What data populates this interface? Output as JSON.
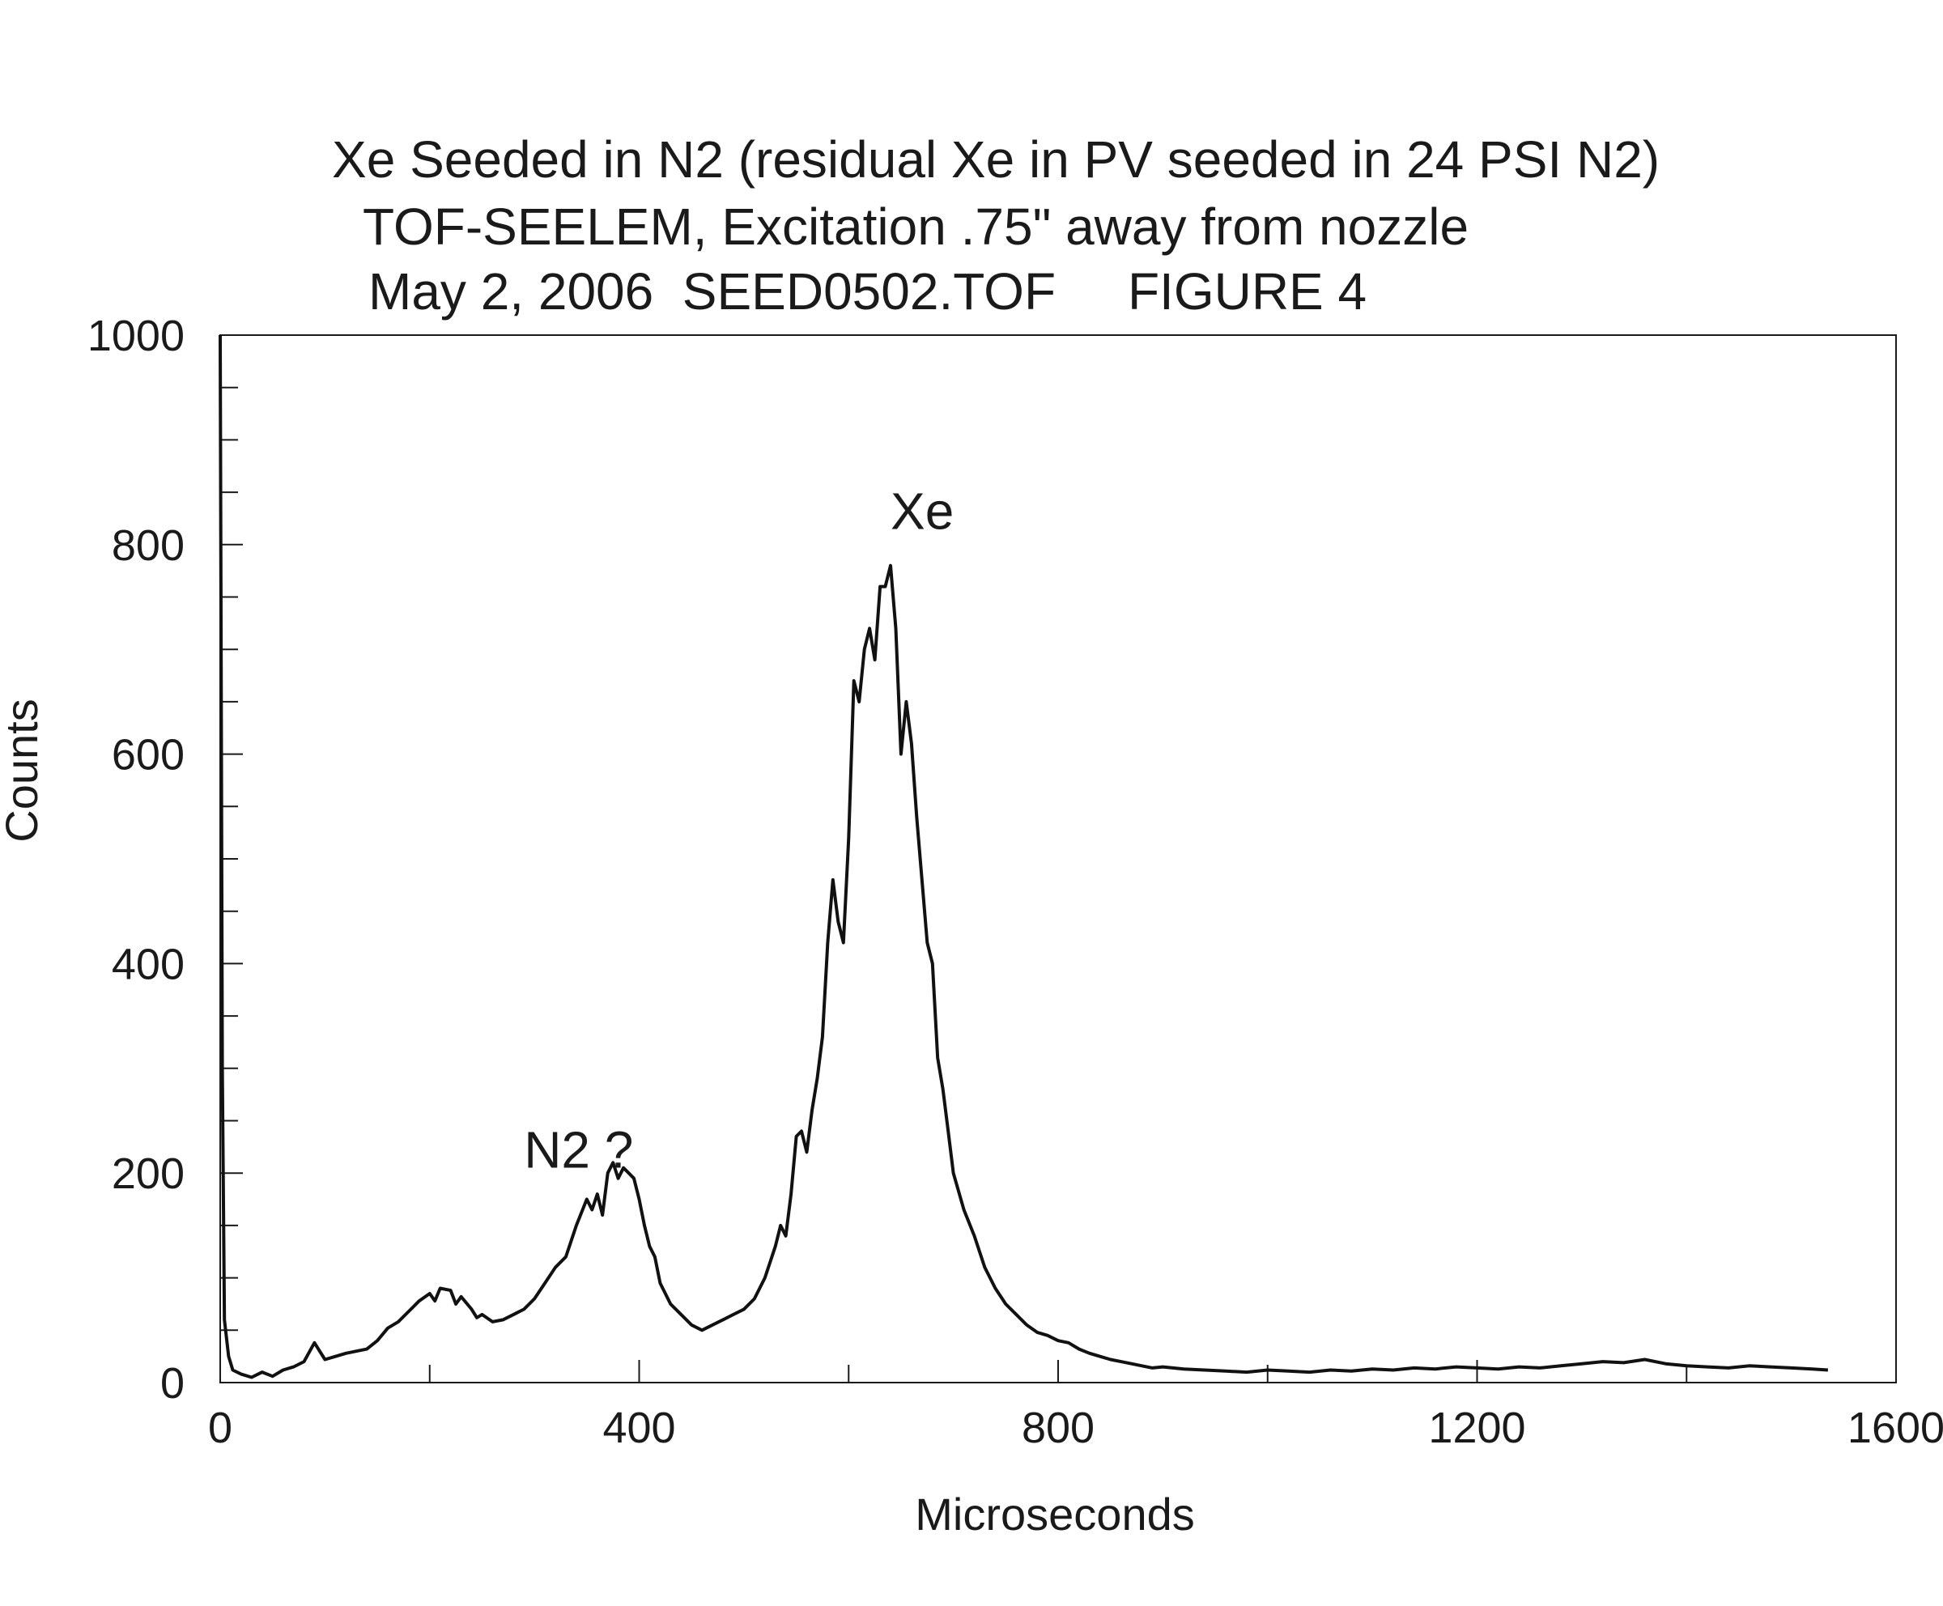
{
  "chart_data": {
    "type": "line",
    "title_lines": [
      "Xe Seeded in N2 (residual Xe in PV seeded in 24 PSI N2)",
      "TOF-SEELEM, Excitation .75\" away from nozzle",
      "May 2, 2006  SEED0502.TOF     FIGURE 4"
    ],
    "xlabel": "Microseconds",
    "ylabel": "Counts",
    "xlim": [
      0,
      1600
    ],
    "ylim": [
      0,
      1000
    ],
    "x_ticks": [
      0,
      400,
      800,
      1200,
      1600
    ],
    "y_ticks": [
      0,
      200,
      400,
      600,
      800,
      1000
    ],
    "grid": false,
    "annotations": [
      {
        "text": "N2 ?",
        "x": 290,
        "y": 205
      },
      {
        "text": "Xe",
        "x": 640,
        "y": 815
      }
    ],
    "series": [
      {
        "x": [
          0,
          2,
          4,
          8,
          12,
          20,
          30,
          40,
          50,
          60,
          70,
          80,
          90,
          95,
          100,
          110,
          120,
          130,
          140,
          150,
          160,
          170,
          180,
          190,
          200,
          205,
          210,
          220,
          225,
          230,
          240,
          245,
          250,
          260,
          270,
          280,
          290,
          300,
          310,
          320,
          330,
          340,
          350,
          355,
          360,
          365,
          370,
          375,
          380,
          385,
          390,
          395,
          400,
          405,
          410,
          415,
          420,
          430,
          440,
          450,
          460,
          470,
          480,
          490,
          500,
          510,
          520,
          530,
          535,
          540,
          545,
          550,
          555,
          560,
          565,
          570,
          575,
          580,
          585,
          590,
          595,
          600,
          605,
          610,
          615,
          620,
          625,
          630,
          635,
          640,
          645,
          650,
          655,
          660,
          665,
          670,
          675,
          680,
          685,
          690,
          695,
          700,
          710,
          720,
          730,
          740,
          750,
          760,
          770,
          780,
          790,
          800,
          810,
          820,
          830,
          840,
          850,
          860,
          870,
          880,
          890,
          900,
          920,
          940,
          960,
          980,
          1000,
          1020,
          1040,
          1060,
          1080,
          1100,
          1120,
          1140,
          1160,
          1180,
          1200,
          1220,
          1240,
          1260,
          1280,
          1300,
          1320,
          1340,
          1360,
          1380,
          1400,
          1420,
          1440,
          1460,
          1480,
          1500,
          1520,
          1535
        ],
        "y": [
          1000,
          300,
          60,
          25,
          12,
          8,
          5,
          10,
          6,
          12,
          15,
          20,
          38,
          30,
          22,
          25,
          28,
          30,
          32,
          40,
          52,
          58,
          68,
          78,
          85,
          78,
          90,
          88,
          75,
          82,
          70,
          62,
          65,
          58,
          60,
          65,
          70,
          80,
          95,
          110,
          120,
          150,
          175,
          165,
          180,
          160,
          200,
          210,
          195,
          205,
          200,
          195,
          175,
          150,
          130,
          120,
          95,
          75,
          65,
          55,
          50,
          55,
          60,
          65,
          70,
          80,
          100,
          130,
          150,
          140,
          180,
          235,
          240,
          220,
          260,
          290,
          330,
          420,
          480,
          440,
          420,
          520,
          670,
          650,
          700,
          720,
          690,
          760,
          760,
          780,
          720,
          600,
          650,
          610,
          540,
          480,
          420,
          400,
          310,
          280,
          240,
          200,
          165,
          140,
          110,
          90,
          75,
          65,
          55,
          48,
          45,
          40,
          38,
          32,
          28,
          25,
          22,
          20,
          18,
          16,
          14,
          15,
          13,
          12,
          11,
          10,
          12,
          11,
          10,
          12,
          11,
          13,
          12,
          14,
          13,
          15,
          14,
          13,
          15,
          14,
          16,
          18,
          20,
          19,
          22,
          18,
          16,
          15,
          14,
          16,
          15,
          14,
          13,
          12
        ]
      }
    ]
  }
}
